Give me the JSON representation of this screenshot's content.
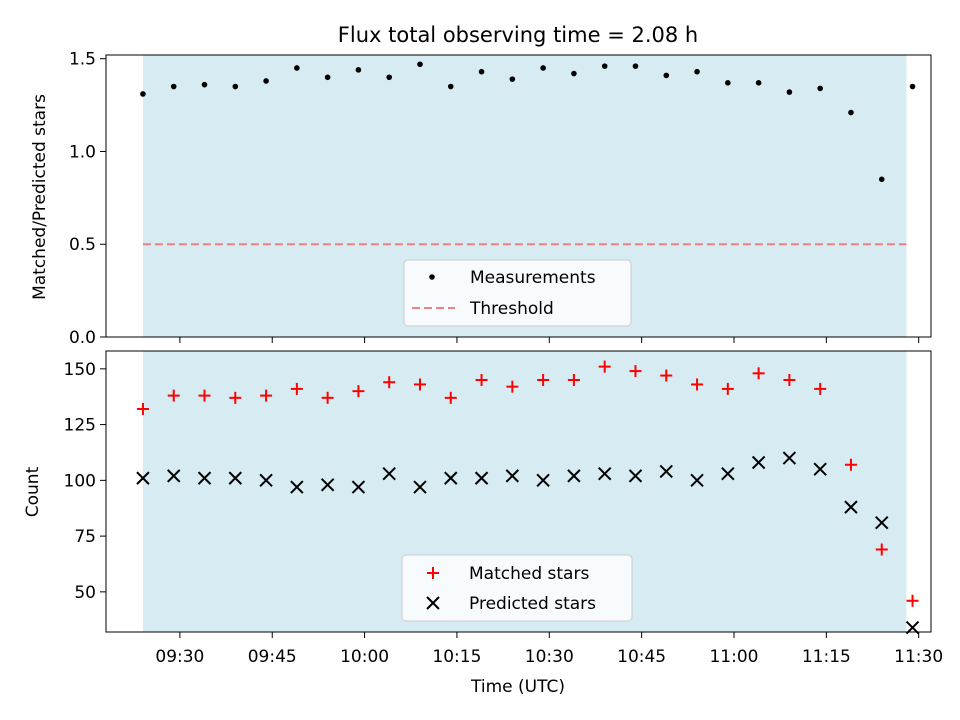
{
  "title": "Flux total observing time = 2.08 h",
  "colors": {
    "band": "#add8e6",
    "measurement": "#000000",
    "threshold": "#f08080",
    "matched": "#ff0000",
    "predicted": "#000000"
  },
  "chart_data": [
    {
      "type": "scatter",
      "ylabel": "Matched/Predicted stars",
      "ylim": [
        0,
        1.52
      ],
      "yticks": [
        0,
        0.5,
        1.0,
        1.5
      ],
      "ytick_labels": [
        "0.0",
        "0.5",
        "1.0",
        "1.5"
      ],
      "xlim": [
        "09:18",
        "11:32"
      ],
      "observing_band": [
        "09:24",
        "11:28"
      ],
      "threshold": 0.5,
      "legend": {
        "position": "lower-center",
        "entries": [
          "Measurements",
          "Threshold"
        ]
      },
      "series": [
        {
          "name": "Measurements",
          "marker": "dot",
          "x": [
            "09:24",
            "09:29",
            "09:34",
            "09:39",
            "09:44",
            "09:49",
            "09:54",
            "09:59",
            "10:04",
            "10:09",
            "10:14",
            "10:19",
            "10:24",
            "10:29",
            "10:34",
            "10:39",
            "10:44",
            "10:49",
            "10:54",
            "10:59",
            "11:04",
            "11:09",
            "11:14",
            "11:19",
            "11:24",
            "11:29"
          ],
          "y": [
            1.31,
            1.35,
            1.36,
            1.35,
            1.38,
            1.45,
            1.4,
            1.44,
            1.4,
            1.47,
            1.35,
            1.43,
            1.39,
            1.45,
            1.42,
            1.46,
            1.46,
            1.41,
            1.43,
            1.37,
            1.37,
            1.32,
            1.34,
            1.21,
            0.85,
            1.35
          ]
        }
      ]
    },
    {
      "type": "scatter",
      "ylabel": "Count",
      "xlabel": "Time (UTC)",
      "ylim": [
        32,
        158
      ],
      "yticks": [
        50,
        75,
        100,
        125,
        150
      ],
      "ytick_labels": [
        "50",
        "75",
        "100",
        "125",
        "150"
      ],
      "xlim": [
        "09:18",
        "11:32"
      ],
      "xticks": [
        "09:30",
        "09:45",
        "10:00",
        "10:15",
        "10:30",
        "10:45",
        "11:00",
        "11:15",
        "11:30"
      ],
      "observing_band": [
        "09:24",
        "11:28"
      ],
      "legend": {
        "position": "lower-center",
        "entries": [
          "Matched stars",
          "Predicted stars"
        ]
      },
      "series": [
        {
          "name": "Matched stars",
          "marker": "plus",
          "x": [
            "09:24",
            "09:29",
            "09:34",
            "09:39",
            "09:44",
            "09:49",
            "09:54",
            "09:59",
            "10:04",
            "10:09",
            "10:14",
            "10:19",
            "10:24",
            "10:29",
            "10:34",
            "10:39",
            "10:44",
            "10:49",
            "10:54",
            "10:59",
            "11:04",
            "11:09",
            "11:14",
            "11:19",
            "11:24",
            "11:29"
          ],
          "y": [
            132,
            138,
            138,
            137,
            138,
            141,
            137,
            140,
            144,
            143,
            137,
            145,
            142,
            145,
            145,
            151,
            149,
            147,
            143,
            141,
            148,
            145,
            141,
            107,
            69,
            46
          ]
        },
        {
          "name": "Predicted stars",
          "marker": "x",
          "x": [
            "09:24",
            "09:29",
            "09:34",
            "09:39",
            "09:44",
            "09:49",
            "09:54",
            "09:59",
            "10:04",
            "10:09",
            "10:14",
            "10:19",
            "10:24",
            "10:29",
            "10:34",
            "10:39",
            "10:44",
            "10:49",
            "10:54",
            "10:59",
            "11:04",
            "11:09",
            "11:14",
            "11:19",
            "11:24",
            "11:29"
          ],
          "y": [
            101,
            102,
            101,
            101,
            100,
            97,
            98,
            97,
            103,
            97,
            101,
            101,
            102,
            100,
            102,
            103,
            102,
            104,
            100,
            103,
            108,
            110,
            105,
            88,
            81,
            34
          ]
        }
      ]
    }
  ]
}
